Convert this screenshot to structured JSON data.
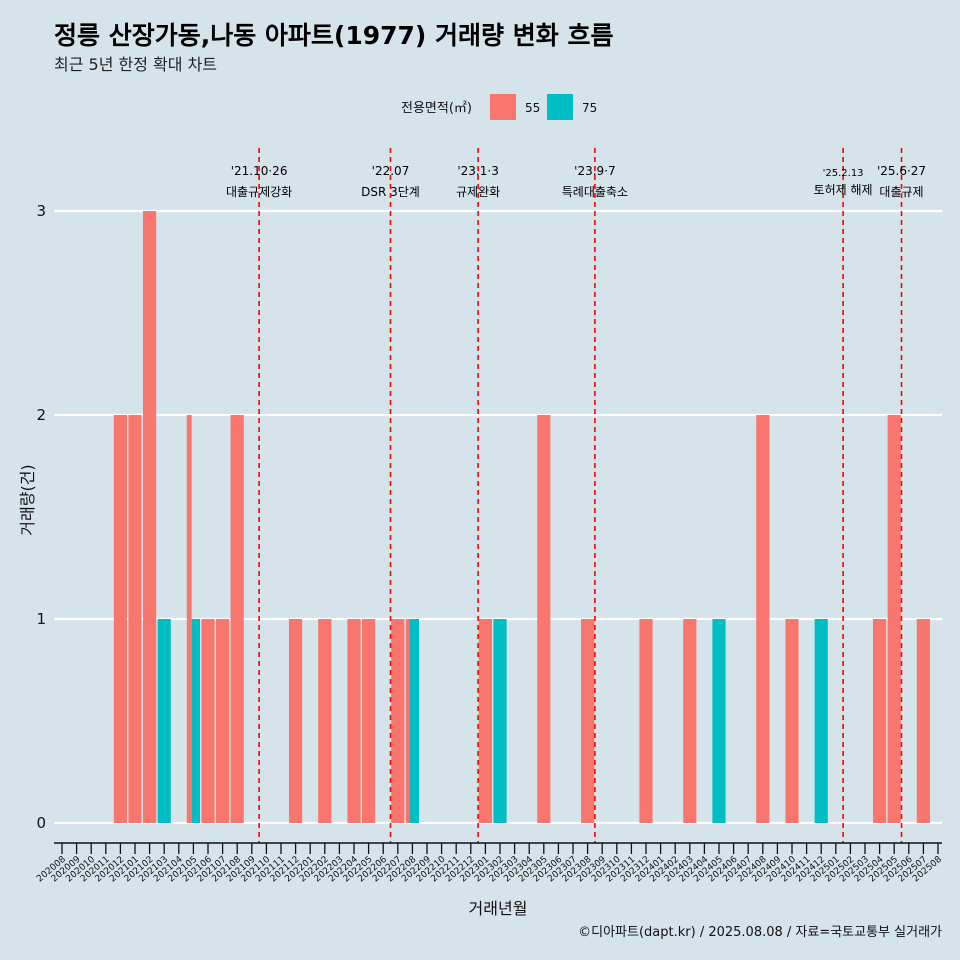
{
  "chart_data": {
    "type": "bar",
    "title": "정릉 산장가동,나동 아파트(1977) 거래량 변화 흐름",
    "subtitle": "최근 5년 한정 확대 차트",
    "xlabel": "거래년월",
    "ylabel": "거래량(건)",
    "caption": "©디아파트(dapt.kr) / 2025.08.08 / 자료=국토교통부 실거래가",
    "legend": {
      "title": "전용면적(㎡)",
      "position": "top",
      "entries": [
        {
          "name": "55",
          "color": "#f8766d"
        },
        {
          "name": "75",
          "color": "#00bfc4"
        }
      ]
    },
    "ylim": [
      0,
      3
    ],
    "yticks": [
      0,
      1,
      2,
      3
    ],
    "grid": {
      "horizontal_major": true,
      "vertical": false
    },
    "categories": [
      "202008",
      "202009",
      "202010",
      "202011",
      "202012",
      "202101",
      "202102",
      "202103",
      "202104",
      "202105",
      "202106",
      "202107",
      "202108",
      "202109",
      "202110",
      "202111",
      "202112",
      "202201",
      "202202",
      "202203",
      "202204",
      "202205",
      "202206",
      "202207",
      "202208",
      "202209",
      "202210",
      "202211",
      "202212",
      "202301",
      "202302",
      "202303",
      "202304",
      "202305",
      "202306",
      "202307",
      "202308",
      "202309",
      "202310",
      "202311",
      "202312",
      "202401",
      "202402",
      "202403",
      "202404",
      "202405",
      "202406",
      "202407",
      "202408",
      "202409",
      "202410",
      "202411",
      "202412",
      "202501",
      "202502",
      "202503",
      "202504",
      "202505",
      "202506",
      "202507",
      "202508"
    ],
    "series": [
      {
        "name": "55",
        "color": "#f8766d",
        "values": [
          0,
          0,
          0,
          0,
          2,
          2,
          3,
          0,
          0,
          2,
          1,
          1,
          2,
          0,
          0,
          0,
          1,
          0,
          1,
          0,
          1,
          1,
          0,
          1,
          1,
          0,
          0,
          0,
          0,
          1,
          0,
          0,
          0,
          2,
          0,
          0,
          1,
          0,
          0,
          0,
          1,
          0,
          0,
          1,
          0,
          0,
          0,
          0,
          2,
          0,
          1,
          0,
          0,
          0,
          0,
          0,
          1,
          2,
          0,
          1,
          0
        ]
      },
      {
        "name": "75",
        "color": "#00bfc4",
        "values": [
          0,
          0,
          0,
          0,
          0,
          0,
          0,
          1,
          0,
          1,
          0,
          0,
          0,
          0,
          0,
          0,
          0,
          0,
          0,
          0,
          0,
          0,
          0,
          0,
          1,
          0,
          0,
          0,
          0,
          0,
          1,
          0,
          0,
          0,
          0,
          0,
          0,
          0,
          0,
          0,
          0,
          0,
          0,
          0,
          0,
          1,
          0,
          0,
          0,
          0,
          0,
          0,
          1,
          0,
          0,
          0,
          0,
          0,
          0,
          0,
          0
        ]
      }
    ],
    "events": [
      {
        "date": "'21.10·26",
        "label": "대출규제강화",
        "x": "202110"
      },
      {
        "date": "'22.07",
        "label": "DSR 3단계",
        "x": "202207"
      },
      {
        "date": "'23.1·3",
        "label": "규제완화",
        "x": "202301"
      },
      {
        "date": "'23.9·7",
        "label": "특례대출축소",
        "x": "202309"
      },
      {
        "date": "'25.2.13",
        "label": "토허제 해제",
        "x": "202502"
      },
      {
        "date": "'25.6·27",
        "label": "대출규제",
        "x": "202506"
      }
    ],
    "event_line_color": "#ff0000"
  }
}
